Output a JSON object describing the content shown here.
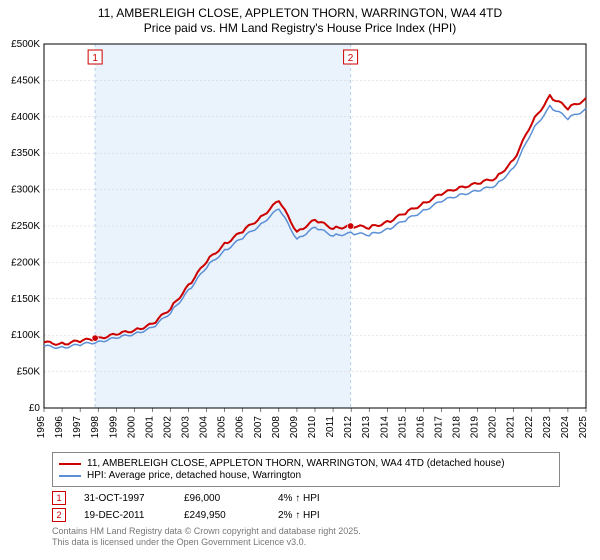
{
  "title": {
    "line1": "11, AMBERLEIGH CLOSE, APPLETON THORN, WARRINGTON, WA4 4TD",
    "line2": "Price paid vs. HM Land Registry's House Price Index (HPI)"
  },
  "chart": {
    "type": "line",
    "background_color": "#ffffff",
    "grid_color": "#d0d0d0",
    "ylabel_prefix": "£",
    "ylim": [
      0,
      500000
    ],
    "ytick_step": 50000,
    "yticks": [
      "£0",
      "£50K",
      "£100K",
      "£150K",
      "£200K",
      "£250K",
      "£300K",
      "£350K",
      "£400K",
      "£450K",
      "£500K"
    ],
    "x_years": [
      1995,
      1996,
      1997,
      1998,
      1999,
      2000,
      2001,
      2002,
      2003,
      2004,
      2005,
      2006,
      2007,
      2008,
      2009,
      2010,
      2011,
      2012,
      2013,
      2014,
      2015,
      2016,
      2017,
      2018,
      2019,
      2020,
      2021,
      2022,
      2023,
      2024,
      2025
    ],
    "series": [
      {
        "name": "11, AMBERLEIGH CLOSE, APPLETON THORN, WARRINGTON, WA4 4TD (detached house)",
        "color": "#cc0000",
        "line_width": 2,
        "values": [
          90000,
          88000,
          92000,
          96000,
          101000,
          107000,
          115000,
          137000,
          168000,
          202000,
          225000,
          243000,
          262000,
          285000,
          242000,
          258000,
          247000,
          250000,
          248000,
          255000,
          268000,
          281000,
          294000,
          303000,
          308000,
          316000,
          340000,
          392000,
          428000,
          412000,
          424000
        ]
      },
      {
        "name": "HPI: Average price, detached house, Warrington",
        "color": "#5b8fd6",
        "line_width": 1.5,
        "values": [
          85000,
          83000,
          87000,
          91000,
          96000,
          102000,
          110000,
          131000,
          161000,
          194000,
          216000,
          234000,
          252000,
          274000,
          232000,
          248000,
          237000,
          240000,
          238000,
          245000,
          258000,
          271000,
          284000,
          293000,
          298000,
          306000,
          329000,
          380000,
          414000,
          398000,
          410000
        ]
      }
    ],
    "markers": [
      {
        "n": "1",
        "year": 1997.83,
        "value": 96000,
        "color": "#cc0000"
      },
      {
        "n": "2",
        "year": 2011.97,
        "value": 249950,
        "color": "#cc0000"
      }
    ],
    "shade_x": [
      1997.83,
      2011.97
    ],
    "shade_color": "#eaf3fb",
    "shade_border": "#b7cfe8"
  },
  "legend": {
    "items": [
      {
        "color": "#cc0000",
        "label": "11, AMBERLEIGH CLOSE, APPLETON THORN, WARRINGTON, WA4 4TD (detached house)"
      },
      {
        "color": "#5b8fd6",
        "label": "HPI: Average price, detached house, Warrington"
      }
    ]
  },
  "marker_rows": [
    {
      "n": "1",
      "color": "#cc0000",
      "date": "31-OCT-1997",
      "price": "£96,000",
      "pct": "4% ↑ HPI"
    },
    {
      "n": "2",
      "color": "#cc0000",
      "date": "19-DEC-2011",
      "price": "£249,950",
      "pct": "2% ↑ HPI"
    }
  ],
  "footer": {
    "line1": "Contains HM Land Registry data © Crown copyright and database right 2025.",
    "line2": "This data is licensed under the Open Government Licence v3.0."
  }
}
